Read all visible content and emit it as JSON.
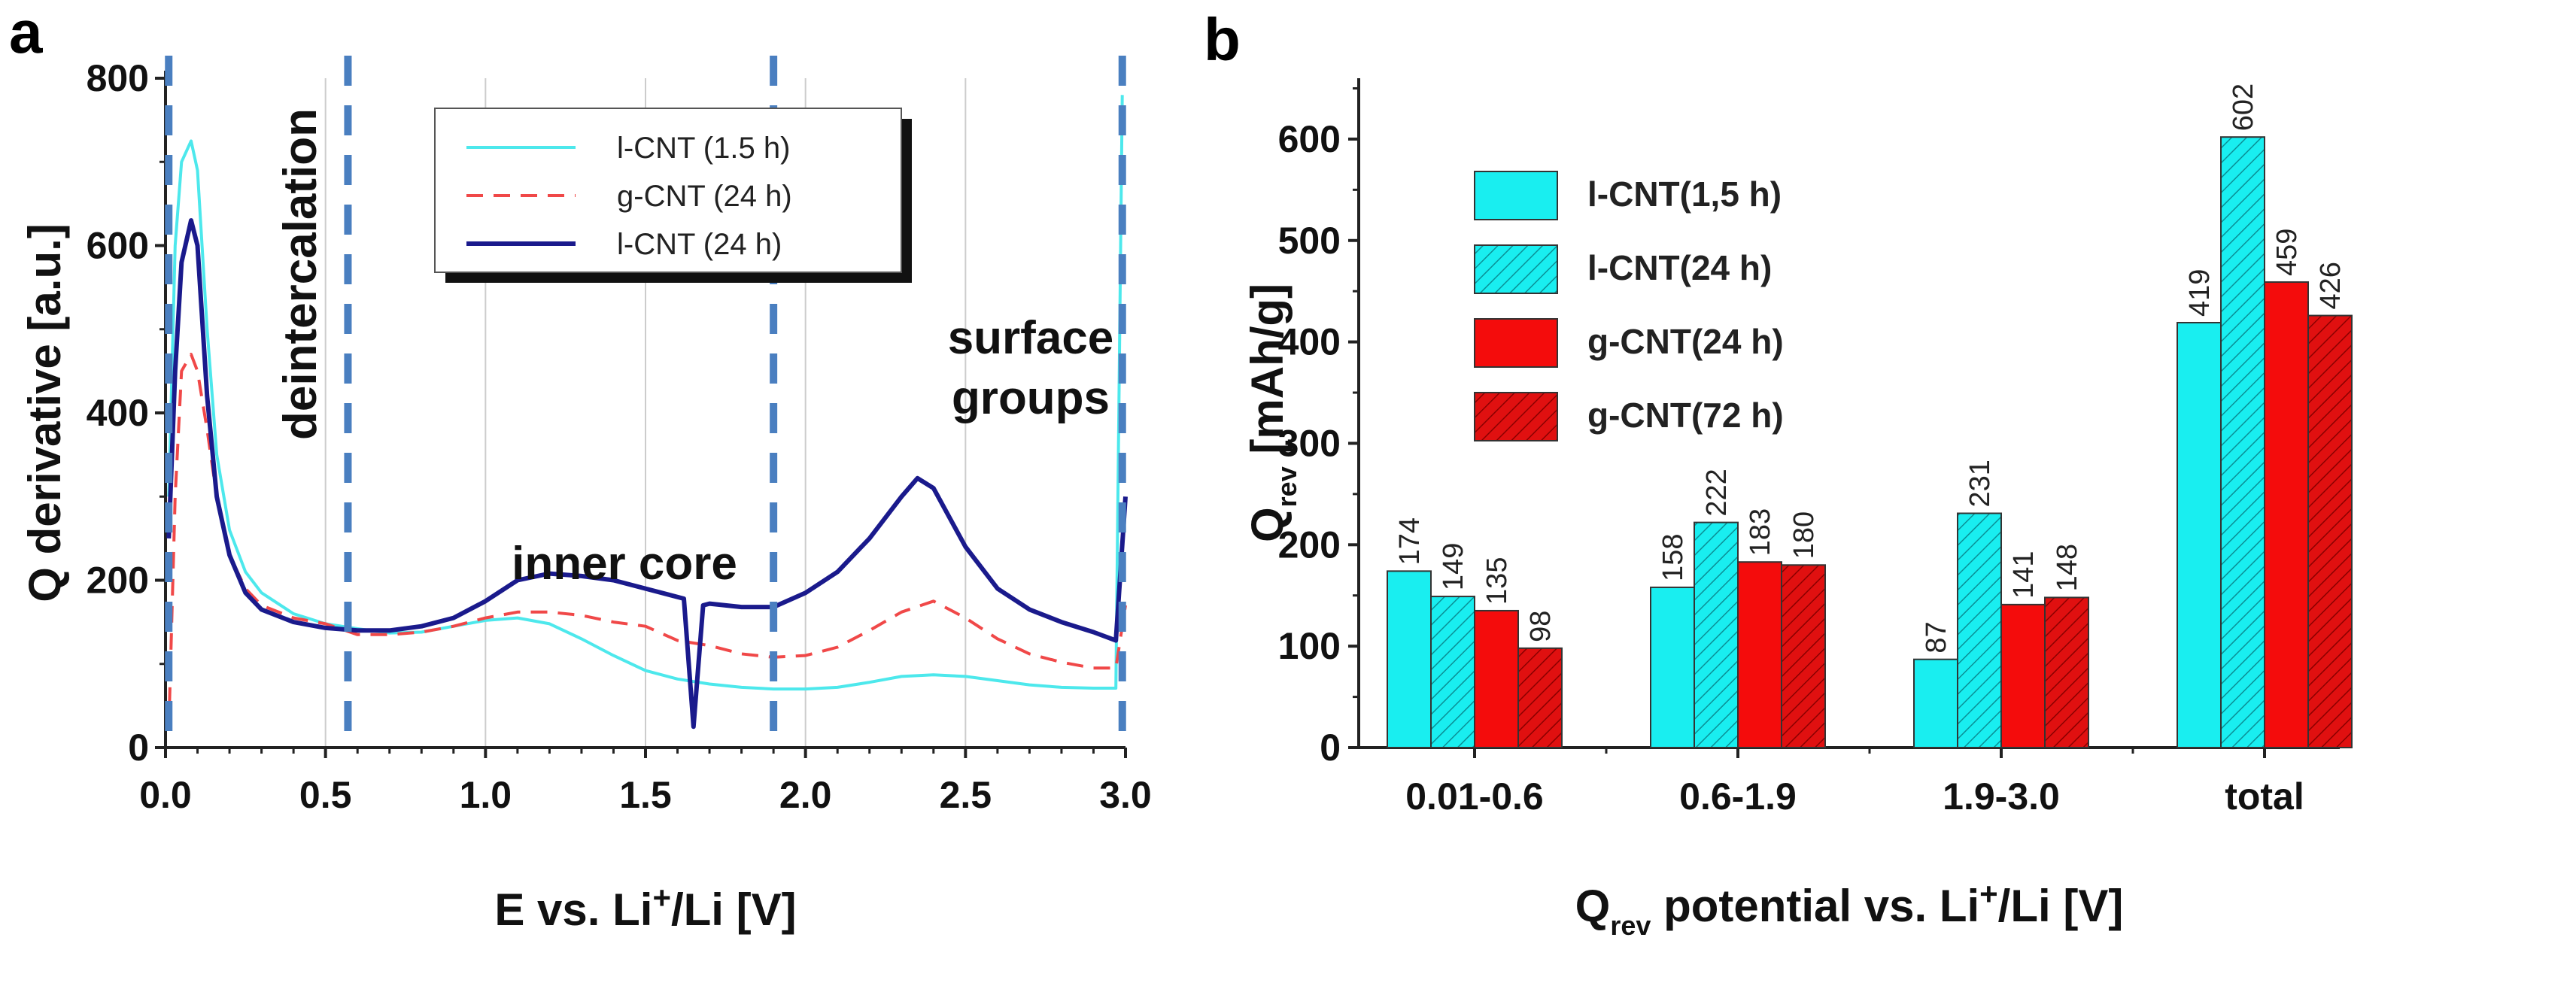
{
  "chart_data": [
    {
      "panel": "a",
      "type": "line",
      "xlabel": "E vs. Li+/Li [V]",
      "xlabel_parts": [
        "E vs. Li",
        "+",
        "/Li [V]"
      ],
      "ylabel": "Q derivative [a.u.]",
      "xlim": [
        0,
        3.0
      ],
      "ylim": [
        0,
        800
      ],
      "xticks": [
        "0.0",
        "0.5",
        "1.0",
        "1.5",
        "2.0",
        "2.5",
        "3.0"
      ],
      "yticks": [
        "0",
        "200",
        "400",
        "600",
        "800"
      ],
      "grid": "vertical",
      "legend_position": "top-center",
      "region_boundaries": [
        0.01,
        0.57,
        1.9,
        2.99
      ],
      "annotations": [
        "deintercalation",
        "inner core",
        "surface",
        "groups"
      ],
      "series": [
        {
          "name": "l-CNT (1.5 h)",
          "color": "#4de8ec",
          "style": "solid",
          "x": [
            0.01,
            0.03,
            0.05,
            0.08,
            0.1,
            0.13,
            0.16,
            0.2,
            0.25,
            0.3,
            0.4,
            0.5,
            0.6,
            0.7,
            0.8,
            0.9,
            1.0,
            1.1,
            1.2,
            1.3,
            1.4,
            1.5,
            1.6,
            1.7,
            1.8,
            1.9,
            2.0,
            2.1,
            2.2,
            2.3,
            2.4,
            2.5,
            2.6,
            2.7,
            2.8,
            2.9,
            2.97,
            2.99
          ],
          "y": [
            300,
            600,
            700,
            725,
            690,
            500,
            350,
            260,
            210,
            185,
            160,
            148,
            142,
            137,
            138,
            145,
            152,
            155,
            148,
            130,
            110,
            92,
            82,
            76,
            72,
            70,
            70,
            72,
            78,
            85,
            87,
            85,
            80,
            75,
            72,
            71,
            71,
            780
          ]
        },
        {
          "name": "g-CNT (24 h)",
          "color": "#f04848",
          "style": "dashed",
          "x": [
            0.01,
            0.03,
            0.05,
            0.08,
            0.1,
            0.13,
            0.16,
            0.2,
            0.25,
            0.3,
            0.4,
            0.5,
            0.6,
            0.7,
            0.8,
            0.9,
            1.0,
            1.1,
            1.2,
            1.3,
            1.4,
            1.5,
            1.6,
            1.7,
            1.8,
            1.9,
            2.0,
            2.1,
            2.2,
            2.3,
            2.4,
            2.5,
            2.6,
            2.7,
            2.8,
            2.9,
            2.97,
            3.0
          ],
          "y": [
            20,
            300,
            450,
            470,
            450,
            380,
            300,
            230,
            190,
            170,
            155,
            148,
            135,
            135,
            138,
            145,
            155,
            162,
            162,
            158,
            150,
            145,
            128,
            122,
            112,
            108,
            110,
            120,
            140,
            162,
            175,
            155,
            130,
            112,
            102,
            95,
            95,
            170
          ]
        },
        {
          "name": "l-CNT (24 h)",
          "color": "#1a1a8c",
          "style": "solid",
          "x": [
            0.01,
            0.03,
            0.05,
            0.08,
            0.1,
            0.13,
            0.16,
            0.2,
            0.25,
            0.3,
            0.4,
            0.5,
            0.6,
            0.7,
            0.8,
            0.9,
            1.0,
            1.1,
            1.2,
            1.3,
            1.4,
            1.5,
            1.62,
            1.65,
            1.68,
            1.7,
            1.8,
            1.9,
            2.0,
            2.1,
            2.2,
            2.3,
            2.35,
            2.4,
            2.5,
            2.6,
            2.7,
            2.8,
            2.9,
            2.97,
            3.0
          ],
          "y": [
            250,
            450,
            580,
            630,
            600,
            420,
            300,
            230,
            185,
            165,
            150,
            143,
            140,
            140,
            145,
            155,
            175,
            200,
            208,
            205,
            200,
            190,
            178,
            25,
            170,
            172,
            168,
            168,
            185,
            210,
            250,
            300,
            322,
            310,
            240,
            190,
            165,
            150,
            138,
            128,
            300
          ]
        }
      ]
    },
    {
      "panel": "b",
      "type": "bar",
      "xlabel": "Qrev potential vs. Li+/Li [V]",
      "xlabel_parts": [
        "Q",
        "rev",
        " potential vs. Li",
        "+",
        "/Li [V]"
      ],
      "ylabel": "Qrev [mAh/g]",
      "ylabel_parts": [
        "Q",
        "rev",
        " [mAh/g]"
      ],
      "ylim": [
        0,
        660
      ],
      "yticks": [
        "0",
        "100",
        "200",
        "300",
        "400",
        "500",
        "600"
      ],
      "categories": [
        "0.01-0.6",
        "0.6-1.9",
        "1.9-3.0",
        "total"
      ],
      "legend_position": "top-left",
      "series": [
        {
          "name": "l-CNT(1,5 h)",
          "color": "#19eef0",
          "hatched": false,
          "values": [
            174,
            158,
            87,
            419
          ]
        },
        {
          "name": "l-CNT(24 h)",
          "color": "#19eef0",
          "hatched": true,
          "values": [
            149,
            222,
            231,
            602
          ]
        },
        {
          "name": "g-CNT(24 h)",
          "color": "#f40c0c",
          "hatched": false,
          "values": [
            135,
            183,
            141,
            459
          ]
        },
        {
          "name": "g-CNT(72 h)",
          "color": "#e01010",
          "hatched": true,
          "values": [
            98,
            180,
            148,
            426
          ]
        }
      ]
    }
  ],
  "panel_labels": [
    "a",
    "b"
  ]
}
